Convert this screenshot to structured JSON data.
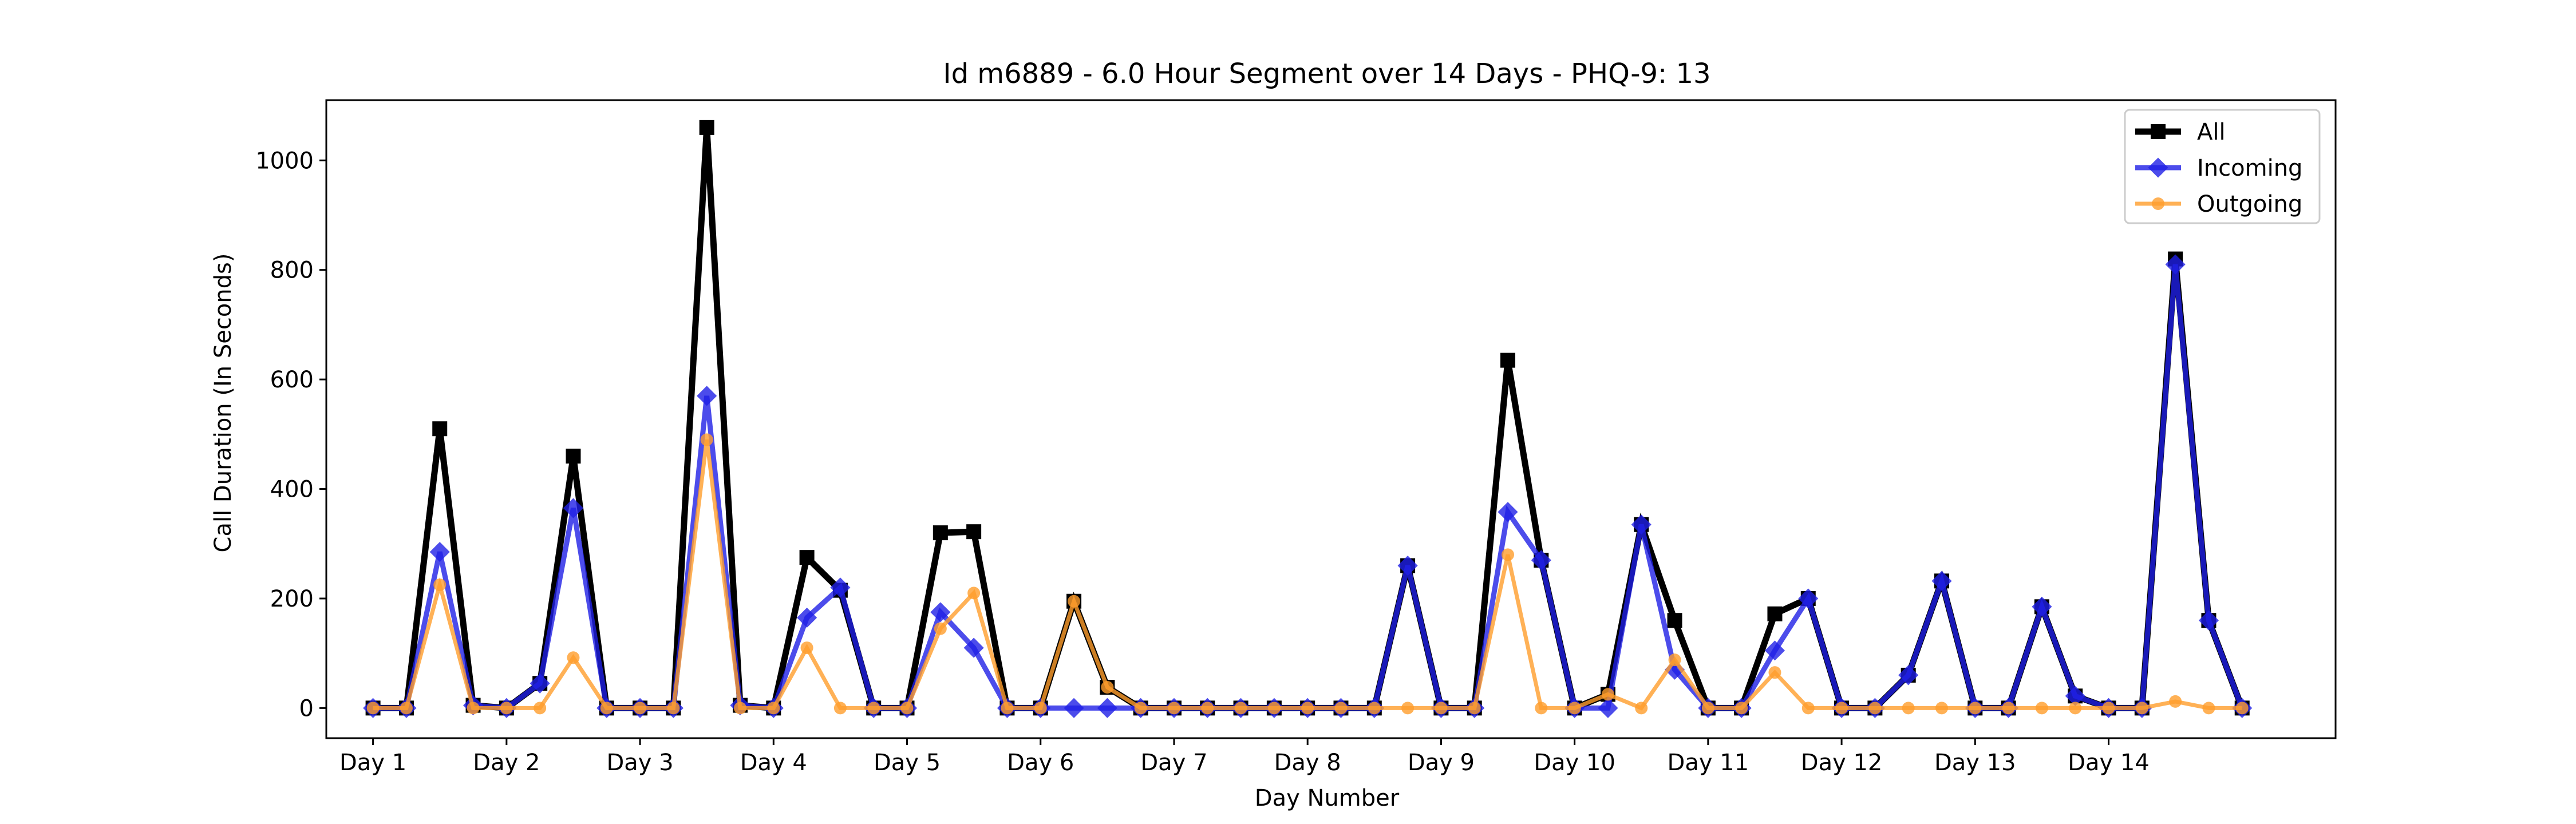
{
  "chart_data": {
    "type": "line",
    "title": "Id m6889 - 6.0 Hour Segment over 14 Days - PHQ-9: 13",
    "xlabel": "Day Number",
    "ylabel": "Call Duration (In Seconds)",
    "x_tick_labels": [
      "Day 1",
      "Day 2",
      "Day 3",
      "Day 4",
      "Day 5",
      "Day 6",
      "Day 7",
      "Day 8",
      "Day 9",
      "Day 10",
      "Day 11",
      "Day 12",
      "Day 13",
      "Day 14"
    ],
    "y_ticks": [
      0,
      200,
      400,
      600,
      800,
      1000
    ],
    "xlim": [
      -1.4,
      58.8
    ],
    "ylim": [
      -55,
      1110
    ],
    "grid": false,
    "legend_position": "top-right",
    "series": [
      {
        "name": "All",
        "color": "#000000",
        "marker": "square",
        "values": [
          0,
          0,
          510,
          5,
          0,
          45,
          460,
          0,
          0,
          0,
          1060,
          5,
          0,
          275,
          215,
          0,
          0,
          320,
          322,
          0,
          0,
          195,
          38,
          0,
          0,
          0,
          0,
          0,
          0,
          0,
          0,
          260,
          0,
          0,
          635,
          270,
          0,
          25,
          335,
          160,
          0,
          0,
          172,
          200,
          0,
          0,
          60,
          232,
          0,
          0,
          185,
          22,
          0,
          0,
          820,
          160,
          0
        ]
      },
      {
        "name": "Incoming",
        "color": "#1f1fe6",
        "marker": "diamond",
        "values": [
          0,
          0,
          285,
          5,
          0,
          45,
          365,
          0,
          0,
          0,
          570,
          5,
          0,
          165,
          220,
          0,
          0,
          175,
          110,
          0,
          0,
          0,
          0,
          0,
          0,
          0,
          0,
          0,
          0,
          0,
          0,
          260,
          0,
          0,
          358,
          270,
          0,
          0,
          335,
          70,
          0,
          0,
          105,
          200,
          0,
          0,
          60,
          232,
          0,
          0,
          185,
          22,
          0,
          0,
          810,
          160,
          0
        ]
      },
      {
        "name": "Outgoing",
        "color": "#ff9d2c",
        "marker": "circle",
        "values": [
          0,
          0,
          225,
          0,
          0,
          0,
          92,
          0,
          0,
          0,
          490,
          0,
          0,
          110,
          0,
          0,
          0,
          145,
          210,
          0,
          0,
          195,
          38,
          0,
          0,
          0,
          0,
          0,
          0,
          0,
          0,
          0,
          0,
          0,
          280,
          0,
          0,
          25,
          0,
          88,
          0,
          0,
          65,
          0,
          0,
          0,
          0,
          0,
          0,
          0,
          0,
          0,
          0,
          0,
          12,
          0,
          0
        ]
      }
    ]
  }
}
